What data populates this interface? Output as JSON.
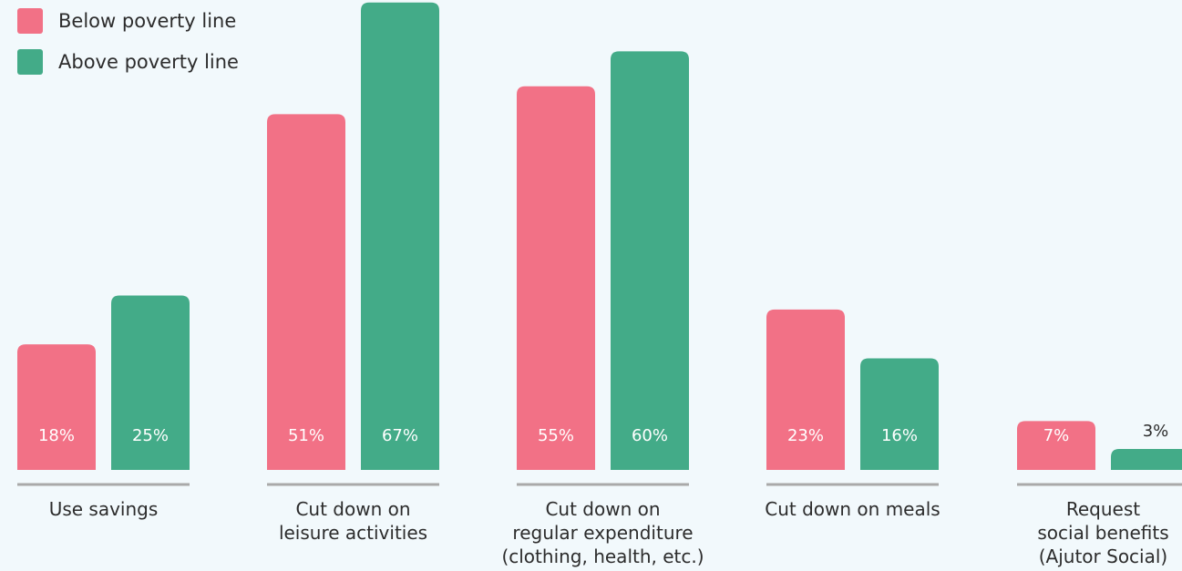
{
  "legend": {
    "items": [
      {
        "label": "Below poverty line",
        "color": "#f27186"
      },
      {
        "label": "Above poverty line",
        "color": "#43ab88"
      }
    ]
  },
  "chart_data": {
    "type": "bar",
    "title": "",
    "xlabel": "",
    "ylabel": "",
    "ylim": [
      0,
      70
    ],
    "grid": false,
    "legend_position": "top-left",
    "categories": [
      [
        "Use savings"
      ],
      [
        "Cut down on",
        "leisure activities"
      ],
      [
        "Cut down on",
        "regular expenditure",
        "(clothing, health, etc.)"
      ],
      [
        "Cut down on meals"
      ],
      [
        "Request",
        "social benefits",
        "(Ajutor Social)"
      ]
    ],
    "series": [
      {
        "name": "Below poverty line",
        "color": "#f27186",
        "values": [
          18,
          51,
          55,
          23,
          7
        ],
        "labels": [
          "18%",
          "51%",
          "55%",
          "23%",
          "7%"
        ]
      },
      {
        "name": "Above poverty line",
        "color": "#43ab88",
        "values": [
          25,
          67,
          60,
          16,
          3
        ],
        "labels": [
          "25%",
          "67%",
          "60%",
          "16%",
          "3%"
        ]
      }
    ]
  }
}
